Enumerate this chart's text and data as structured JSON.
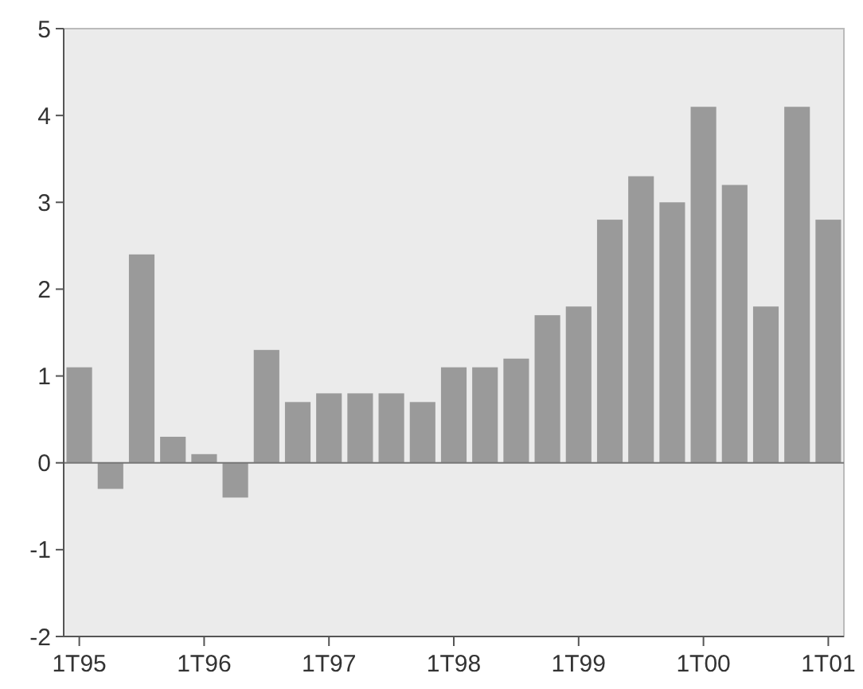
{
  "chart_data": {
    "type": "bar",
    "categories": [
      "1T95",
      null,
      null,
      null,
      "1T96",
      null,
      null,
      null,
      "1T97",
      null,
      null,
      null,
      "1T98",
      null,
      null,
      null,
      "1T99",
      null,
      null,
      null,
      "1T00",
      null,
      null,
      null,
      "1T01"
    ],
    "values": [
      1.1,
      -0.3,
      2.4,
      0.3,
      0.1,
      -0.4,
      1.3,
      0.7,
      0.8,
      0.8,
      0.8,
      0.7,
      1.1,
      1.1,
      1.2,
      1.7,
      1.8,
      2.8,
      3.3,
      3.0,
      4.1,
      3.2,
      1.8,
      4.1,
      2.8
    ],
    "color": "#9a9a9a",
    "ylim": [
      -2,
      5
    ],
    "yticks": [
      -2,
      -1,
      0,
      1,
      2,
      3,
      4,
      5
    ],
    "ref_lines": [
      {
        "axis": "y",
        "value": 0
      }
    ]
  }
}
